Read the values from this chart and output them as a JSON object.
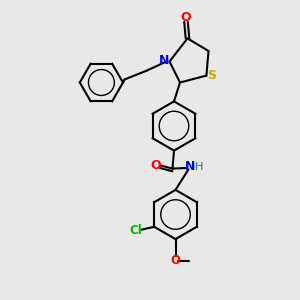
{
  "bg_color": "#e8e8e8",
  "bond_color": "#000000",
  "atom_colors": {
    "O": "#ff0000",
    "N": "#0000ff",
    "S": "#ccaa00",
    "Cl": "#00bb00",
    "H": "#008888",
    "C": "#000000"
  },
  "figsize": [
    3.0,
    3.0
  ],
  "dpi": 100
}
